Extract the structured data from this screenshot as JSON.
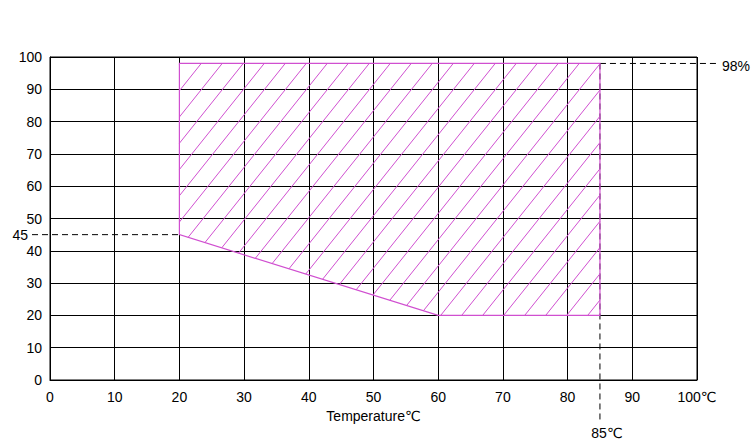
{
  "chart_data": {
    "type": "polygon",
    "x_label": "Temperature℃",
    "x": [
      20,
      85,
      85,
      60,
      20
    ],
    "values": [
      98,
      98,
      20,
      20,
      45
    ],
    "color": "#d04fd0",
    "line_style": "hatched",
    "xlim": [
      0,
      100
    ],
    "xticks": [
      0,
      10,
      20,
      30,
      40,
      50,
      60,
      70,
      80,
      90,
      {
        "value": 100,
        "label": "100℃"
      }
    ],
    "ylim": [
      0,
      100
    ],
    "yticks": [
      0,
      10,
      20,
      30,
      40,
      50,
      60,
      70,
      80,
      90,
      100
    ],
    "grid": true,
    "annotations": [
      {
        "label": "45",
        "axis": "y",
        "value": 45,
        "to": 20
      },
      {
        "label": "98%",
        "axis": "y",
        "value": 98,
        "from": 85
      },
      {
        "label": "85℃",
        "axis": "x",
        "value": 85,
        "from": 98
      }
    ]
  }
}
